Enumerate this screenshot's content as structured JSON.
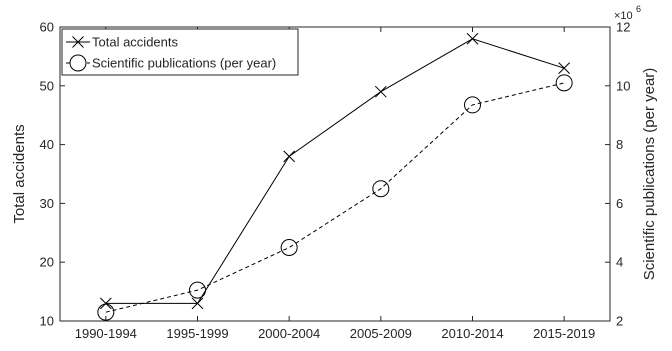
{
  "chart_data": {
    "type": "line",
    "categories": [
      "1990-1994",
      "1995-1999",
      "2000-2004",
      "2005-2009",
      "2010-2014",
      "2015-2019"
    ],
    "series": [
      {
        "name": "Total accidents",
        "axis": "left",
        "values": [
          13,
          13,
          38,
          49,
          58,
          53
        ],
        "line_style": "solid",
        "marker": "x"
      },
      {
        "name": "Scientific publications (per year)",
        "axis": "right",
        "values": [
          2.3,
          3.05,
          4.5,
          6.5,
          9.35,
          10.1
        ],
        "line_style": "dashed",
        "marker": "circle"
      }
    ],
    "ylabel_left": "Total accidents",
    "ylabel_right": "Scientific publications (per year)",
    "ylim_left": [
      10,
      60
    ],
    "yticks_left": [
      "10",
      "20",
      "30",
      "40",
      "50",
      "60"
    ],
    "ylim_right": [
      2,
      12
    ],
    "yticks_right": [
      "2",
      "4",
      "6",
      "8",
      "10",
      "12"
    ],
    "right_axis_multiplier": "×10",
    "right_axis_multiplier_exponent": "6",
    "grid": false,
    "legend_position": "top-left"
  }
}
